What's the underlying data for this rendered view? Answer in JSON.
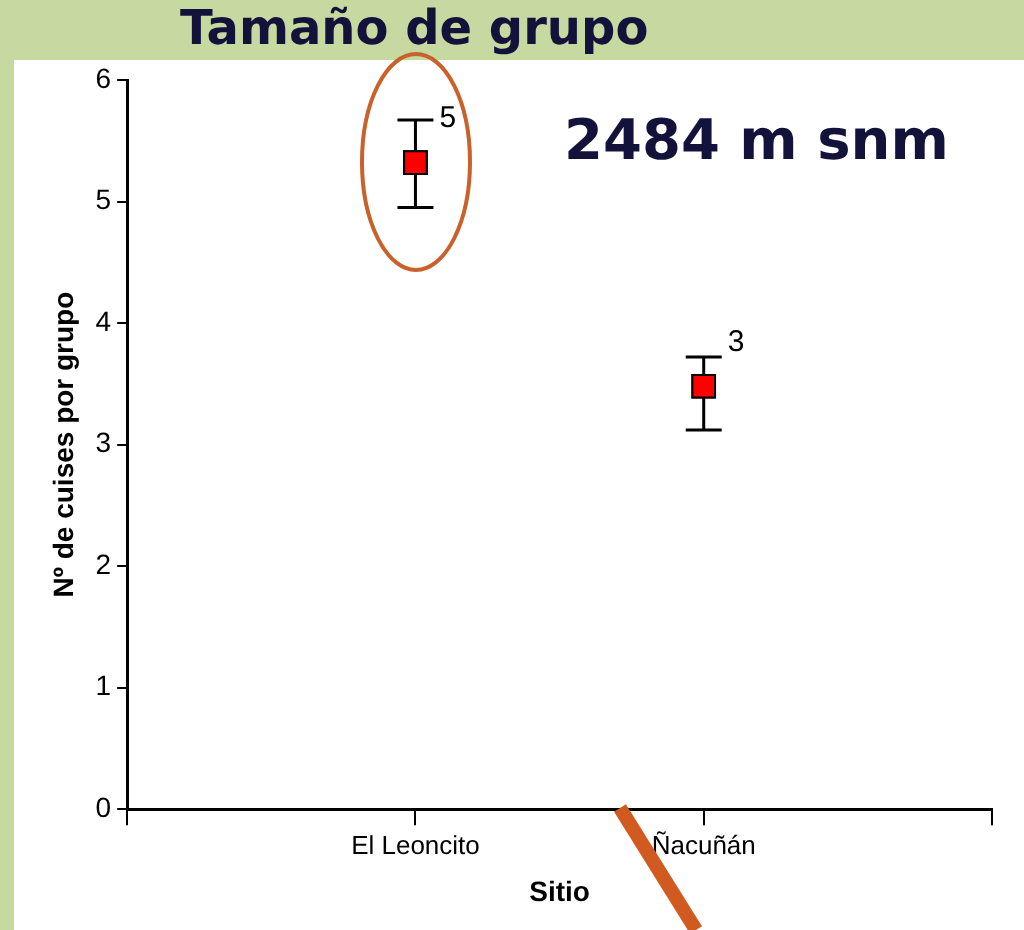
{
  "chart_data": {
    "type": "scatter",
    "title": "Tamaño de grupo",
    "xlabel": "Sitio",
    "ylabel": "Nº de cuises por grupo",
    "categories": [
      "El Leoncito",
      "Ñacuñán"
    ],
    "series": [
      {
        "color": "#ff0000",
        "values": [
          5.32,
          3.48
        ],
        "errors": [
          [
            4.95,
            5.67
          ],
          [
            3.12,
            3.72
          ]
        ]
      }
    ],
    "ylim": [
      0,
      6
    ],
    "yticks": [
      0,
      1,
      2,
      3,
      4,
      5,
      6
    ],
    "marker": "square",
    "annotations": [
      "2484 m snm",
      {
        "text": "5",
        "x": "El Leoncito",
        "y": 5.32
      },
      {
        "text": "3",
        "x": "Ñacuñán",
        "y": 3.48
      }
    ]
  }
}
